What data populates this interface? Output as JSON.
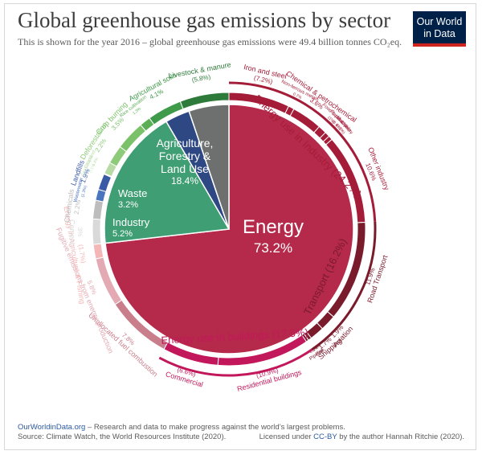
{
  "title": "Global greenhouse gas emissions by sector",
  "subtitle": "This is shown for the year 2016 – global greenhouse gas emissions were 49.4 billion tonnes CO₂eq.",
  "logo": {
    "line1": "Our World",
    "line2": "in Data"
  },
  "footer": {
    "site": "OurWorldinData.org",
    "tagline": " – Research and data to make progress against the world’s largest problems.",
    "source": "Source: Climate Watch, the World Resources Institute (2020).",
    "license_prefix": "Licensed under ",
    "license": "CC-BY",
    "license_suffix": " by the author Hannah Ritchie (2020)."
  },
  "chart_data": {
    "type": "pie",
    "inner": [
      {
        "name": "Energy",
        "value": 73.2,
        "label": "73.2%",
        "color": "#b5294a"
      },
      {
        "name": "Agriculture, Forestry & Land Use",
        "value": 18.4,
        "label": "18.4%",
        "color": "#3f9e73"
      },
      {
        "name": "Waste",
        "value": 3.2,
        "label": "3.2%",
        "color": "#2e4883"
      },
      {
        "name": "Industry",
        "value": 5.2,
        "label": "5.2%",
        "color": "#6e7070"
      }
    ],
    "outer": [
      {
        "name": "Iron and steel",
        "value": 7.2,
        "label": "(7.2%)",
        "color": "#a51c38"
      },
      {
        "name": "Non-ferrous metals",
        "value": 0.7,
        "label": "0.7%",
        "color": "#a51c38"
      },
      {
        "name": "Chemical & petrochemical",
        "value": 3.6,
        "label": "3.6%",
        "color": "#a51c38"
      },
      {
        "name": "Food & tobacco",
        "value": 1.0,
        "label": "(1%)",
        "color": "#a51c38"
      },
      {
        "name": "Paper & pulp",
        "value": 0.6,
        "label": "(0.6%)",
        "color": "#a51c38"
      },
      {
        "name": "Machinery",
        "value": 0.5,
        "label": "(0.5%)",
        "color": "#a51c38"
      },
      {
        "name": "Other industry",
        "value": 10.6,
        "label": "10.6%",
        "color": "#a51c38"
      },
      {
        "name": "Road Transport",
        "value": 11.9,
        "label": "11.9%",
        "color": "#7a1b2c"
      },
      {
        "name": "Aviation",
        "value": 1.9,
        "label": "1.9%",
        "color": "#7a1b2c"
      },
      {
        "name": "Shipping",
        "value": 1.7,
        "label": "1.7%",
        "color": "#7a1b2c"
      },
      {
        "name": "Rail",
        "value": 0.4,
        "label": "0.4%",
        "color": "#7a1b2c"
      },
      {
        "name": "Pipeline",
        "value": 0.3,
        "label": "0.3%",
        "color": "#7a1b2c"
      },
      {
        "name": "Residential buildings",
        "value": 10.9,
        "label": "(10.9%)",
        "color": "#c2185b"
      },
      {
        "name": "Commercial",
        "value": 6.6,
        "label": "(6.6%)",
        "color": "#c2185b"
      },
      {
        "name": "Unallocated fuel combustion",
        "value": 7.8,
        "label": "7.8%",
        "color": "#c97e8c"
      },
      {
        "name": "Fugitive emissions from energy production",
        "value": 5.8,
        "label": "5.8%",
        "color": "#e3aab4"
      },
      {
        "name": "Energy in Agriculture & Fishing",
        "value": 1.7,
        "label": "(1.7%)",
        "color": "#f4b6b6"
      },
      {
        "name": "Cement",
        "value": 3.0,
        "label": "3%",
        "color": "#d9d9d9"
      },
      {
        "name": "Chemicals",
        "value": 2.2,
        "label": "2.2%",
        "color": "#bdbdbd"
      },
      {
        "name": "Wastewater",
        "value": 1.3,
        "label": "(1.3%)",
        "color": "#4a76c0"
      },
      {
        "name": "Landfills",
        "value": 1.9,
        "label": "1.9%",
        "color": "#3a5aa6"
      },
      {
        "name": "Grassland",
        "value": 0.1,
        "label": "0.1%",
        "color": "#cfe8c4"
      },
      {
        "name": "Cropland",
        "value": 1.4,
        "label": "1.4%",
        "color": "#b8dba6"
      },
      {
        "name": "Deforestation",
        "value": 2.2,
        "label": "2.2%",
        "color": "#8dcb7a"
      },
      {
        "name": "Crop burning",
        "value": 3.5,
        "label": "3.5%",
        "color": "#7bc16a"
      },
      {
        "name": "Rice cultivation",
        "value": 1.3,
        "label": "1.3%",
        "color": "#5cae55"
      },
      {
        "name": "Agricultural soils",
        "value": 4.1,
        "label": "4.1%",
        "color": "#3f9a4a"
      },
      {
        "name": "Livestock & manure",
        "value": 5.8,
        "label": "(5.8%)",
        "color": "#2e7a3a"
      }
    ],
    "groups": [
      {
        "name": "Energy use in Industry",
        "label": "(24.2%)",
        "value": 24.2,
        "color": "#a51c38"
      },
      {
        "name": "Transport",
        "label": "(16.2%)",
        "value": 16.2,
        "color": "#7a1b2c"
      },
      {
        "name": "Energy use in buildings",
        "label": "(17.5%)",
        "value": 17.5,
        "color": "#c2185b"
      }
    ]
  }
}
